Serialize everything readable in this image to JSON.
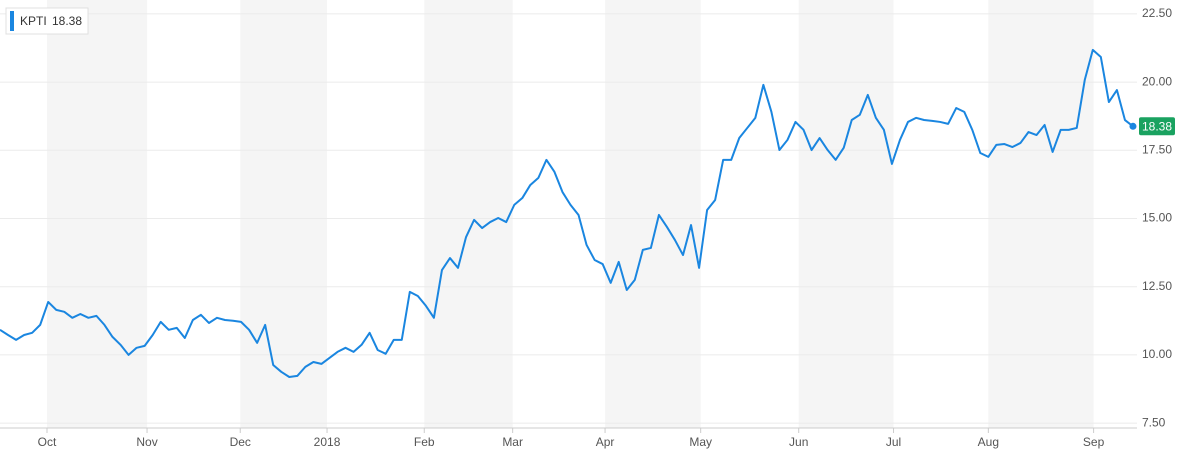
{
  "chart_data": {
    "type": "line",
    "series": [
      {
        "name": "KPTI",
        "color": "#1a86e0",
        "values": [
          10.92,
          10.73,
          10.55,
          10.73,
          10.81,
          11.1,
          11.94,
          11.65,
          11.58,
          11.36,
          11.5,
          11.36,
          11.43,
          11.1,
          10.66,
          10.37,
          10.0,
          10.26,
          10.33,
          10.73,
          11.21,
          10.92,
          10.99,
          10.62,
          11.28,
          11.47,
          11.17,
          11.36,
          11.28,
          11.25,
          11.21,
          10.92,
          10.44,
          11.1,
          9.63,
          9.38,
          9.19,
          9.23,
          9.56,
          9.74,
          9.67,
          9.89,
          10.11,
          10.26,
          10.11,
          10.37,
          10.81,
          10.18,
          10.04,
          10.55,
          10.55,
          12.31,
          12.16,
          11.8,
          11.36,
          13.11,
          13.55,
          13.19,
          14.32,
          14.95,
          14.65,
          14.87,
          15.02,
          14.87,
          15.5,
          15.75,
          16.23,
          16.49,
          17.15,
          16.71,
          15.97,
          15.5,
          15.13,
          14.03,
          13.48,
          13.33,
          12.64,
          13.41,
          12.38,
          12.75,
          13.85,
          13.92,
          15.13,
          14.69,
          14.21,
          13.66,
          14.76,
          13.19,
          15.31,
          15.68,
          17.15,
          17.15,
          17.95,
          18.32,
          18.69,
          19.9,
          18.91,
          17.51,
          17.88,
          18.54,
          18.25,
          17.51,
          17.95,
          17.51,
          17.15,
          17.59,
          18.61,
          18.8,
          19.53,
          18.69,
          18.25,
          17.0,
          17.88,
          18.54,
          18.69,
          18.61,
          18.58,
          18.54,
          18.47,
          19.05,
          18.91,
          18.25,
          17.4,
          17.26,
          17.7,
          17.73,
          17.62,
          17.77,
          18.17,
          18.06,
          18.43,
          17.44,
          18.25,
          18.25,
          18.32,
          20.08,
          21.18,
          20.92,
          19.27,
          19.71,
          18.61,
          18.38
        ]
      }
    ],
    "xlim": [
      0,
      141.5
    ],
    "xticks": [
      {
        "value": 5.85,
        "label": "Oct"
      },
      {
        "value": 18.3,
        "label": "Nov"
      },
      {
        "value": 29.9,
        "label": "Dec"
      },
      {
        "value": 40.7,
        "label": "2018"
      },
      {
        "value": 52.8,
        "label": "Feb"
      },
      {
        "value": 63.8,
        "label": "Mar"
      },
      {
        "value": 75.3,
        "label": "Apr"
      },
      {
        "value": 87.2,
        "label": "May"
      },
      {
        "value": 99.4,
        "label": "Jun"
      },
      {
        "value": 111.2,
        "label": "Jul"
      },
      {
        "value": 123.0,
        "label": "Aug"
      },
      {
        "value": 136.1,
        "label": "Sep"
      }
    ],
    "ylim": [
      7.32,
      23.01
    ],
    "yticks": [
      {
        "value": 7.5,
        "label": "7.50"
      },
      {
        "value": 10,
        "label": "10.00"
      },
      {
        "value": 12.5,
        "label": "12.50"
      },
      {
        "value": 15,
        "label": "15.00"
      },
      {
        "value": 17.5,
        "label": "17.50"
      },
      {
        "value": 20,
        "label": "20.00"
      },
      {
        "value": 22.5,
        "label": "22.50"
      }
    ],
    "grid": true
  }
}
